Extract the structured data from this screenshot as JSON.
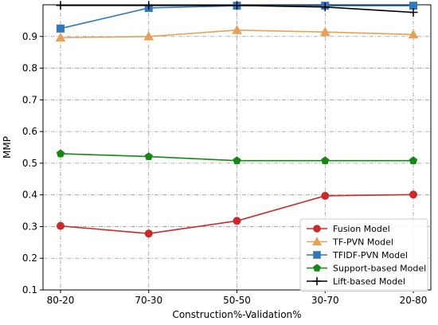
{
  "chart_data": {
    "type": "line",
    "xlabel": "Construction%-Validation%",
    "ylabel": "MMP",
    "categories": [
      "80-20",
      "70-30",
      "50-50",
      "30-70",
      "20-80"
    ],
    "ylim": [
      0.1,
      1.0
    ],
    "yticks": [
      0.1,
      0.2,
      0.3,
      0.4,
      0.5,
      0.6,
      0.7,
      0.8,
      0.9
    ],
    "grid": true,
    "legend_position": "bottom-right",
    "series": [
      {
        "name": "Fusion Model",
        "color": "#cc2a2a",
        "marker": "circle",
        "values": [
          0.302,
          0.278,
          0.318,
          0.397,
          0.401
        ]
      },
      {
        "name": "TF-PVN Model",
        "color": "#e8a055",
        "marker": "triangle",
        "values": [
          0.896,
          0.9,
          0.92,
          0.914,
          0.906
        ]
      },
      {
        "name": "TFIDF-PVN Model",
        "color": "#2f78bd",
        "marker": "square",
        "values": [
          0.925,
          0.99,
          0.997,
          0.997,
          0.997
        ]
      },
      {
        "name": "Support-based Model",
        "color": "#148a14",
        "marker": "pentagon",
        "values": [
          0.53,
          0.521,
          0.508,
          0.508,
          0.508
        ]
      },
      {
        "name": "Lift-based Model",
        "color": "#000000",
        "marker": "plus",
        "values": [
          0.998,
          0.998,
          0.998,
          0.993,
          0.976
        ]
      }
    ]
  }
}
